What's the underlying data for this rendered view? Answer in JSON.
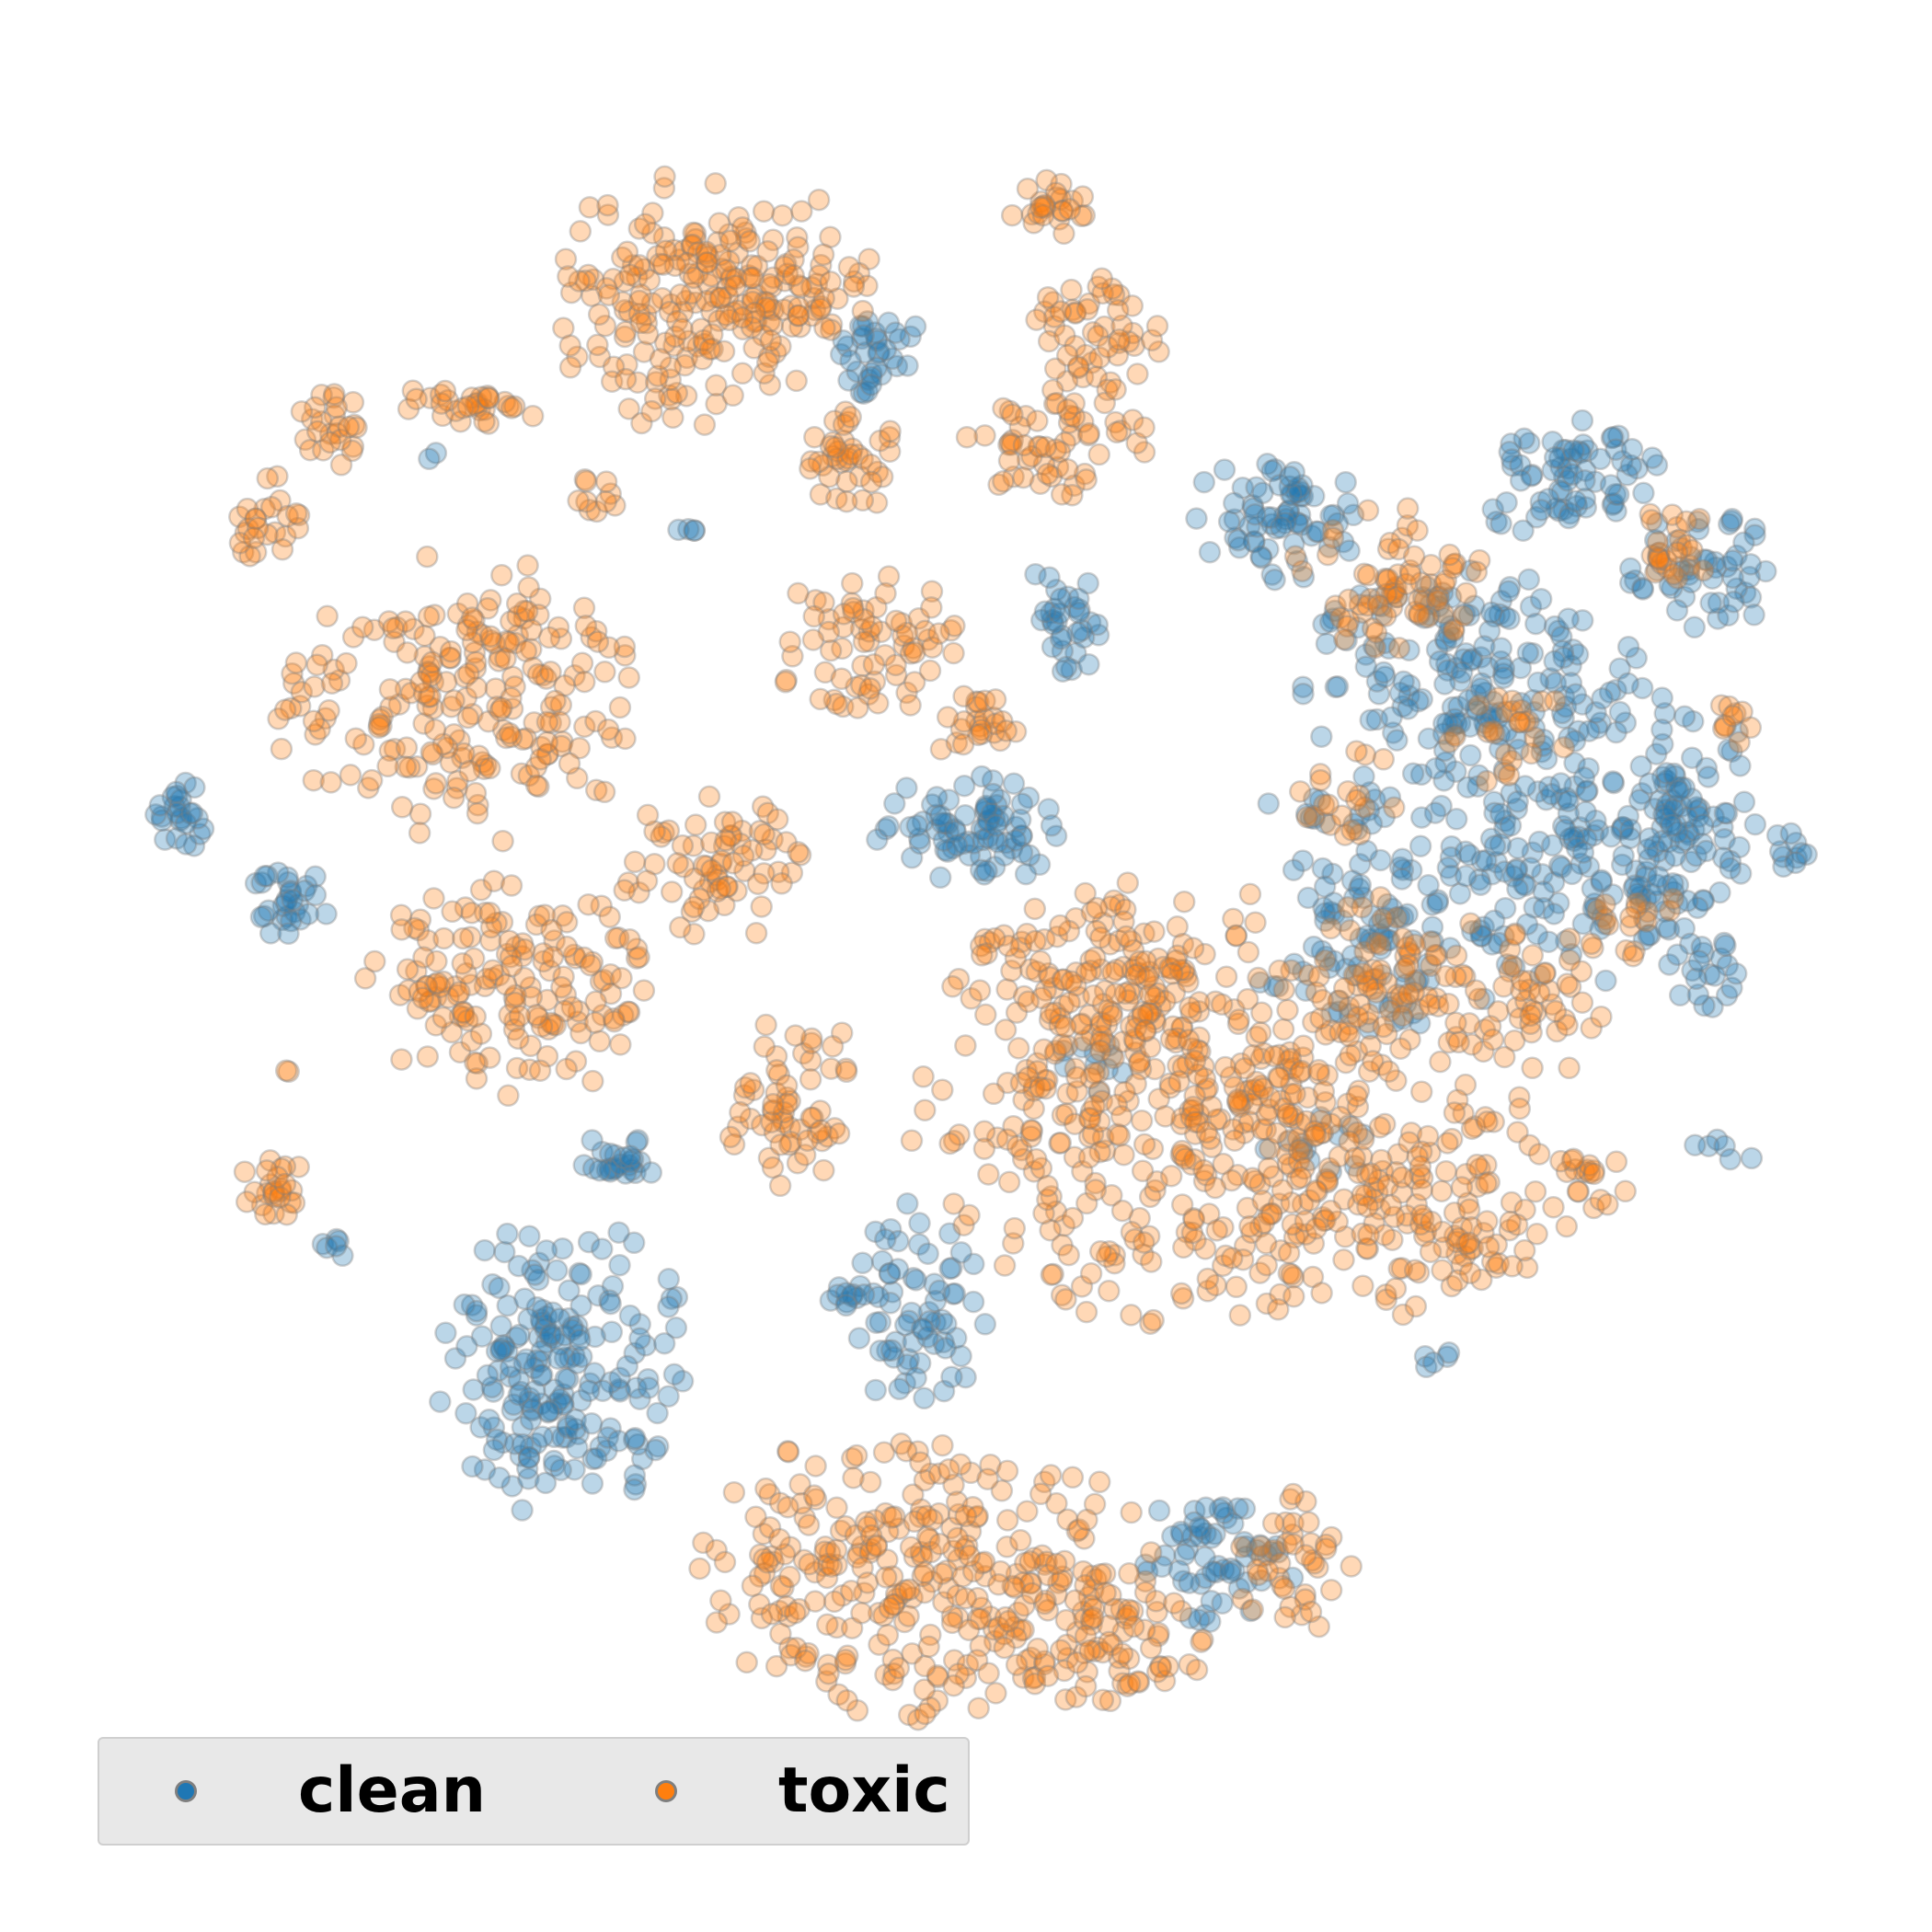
{
  "chart_data": {
    "type": "scatter",
    "title": "",
    "xlabel": "",
    "ylabel": "",
    "axes_visible": false,
    "grid": false,
    "legend_position": "bottom-left",
    "point_alpha": 0.3,
    "edge_color": "#7f7f7f",
    "series": [
      {
        "name": "clean",
        "color": "#1f77b4",
        "clusters": [
          {
            "cx": 1000,
            "cy": 1420,
            "rx": 80,
            "ry": 120,
            "n": 70
          },
          {
            "cx": 1590,
            "cy": 730,
            "rx": 200,
            "ry": 130,
            "n": 160
          },
          {
            "cx": 1720,
            "cy": 900,
            "rx": 190,
            "ry": 170,
            "n": 170
          },
          {
            "cx": 1500,
            "cy": 980,
            "rx": 170,
            "ry": 160,
            "n": 130
          },
          {
            "cx": 1390,
            "cy": 560,
            "rx": 95,
            "ry": 75,
            "n": 70
          },
          {
            "cx": 1700,
            "cy": 520,
            "rx": 110,
            "ry": 65,
            "n": 70
          },
          {
            "cx": 1850,
            "cy": 620,
            "rx": 80,
            "ry": 70,
            "n": 50
          },
          {
            "cx": 1830,
            "cy": 900,
            "rx": 90,
            "ry": 150,
            "n": 70
          },
          {
            "cx": 1060,
            "cy": 900,
            "rx": 110,
            "ry": 60,
            "n": 80
          },
          {
            "cx": 1160,
            "cy": 680,
            "rx": 40,
            "ry": 60,
            "n": 25
          },
          {
            "cx": 610,
            "cy": 1480,
            "rx": 140,
            "ry": 170,
            "n": 200
          },
          {
            "cx": 670,
            "cy": 1260,
            "rx": 45,
            "ry": 30,
            "n": 25
          },
          {
            "cx": 950,
            "cy": 380,
            "rx": 50,
            "ry": 70,
            "n": 35
          },
          {
            "cx": 312,
            "cy": 980,
            "rx": 45,
            "ry": 45,
            "n": 30
          },
          {
            "cx": 195,
            "cy": 890,
            "rx": 38,
            "ry": 40,
            "n": 25
          },
          {
            "cx": 1320,
            "cy": 1700,
            "rx": 90,
            "ry": 80,
            "n": 60
          },
          {
            "cx": 910,
            "cy": 1400,
            "rx": 35,
            "ry": 25,
            "n": 8
          },
          {
            "cx": 1140,
            "cy": 650,
            "rx": 35,
            "ry": 30,
            "n": 8
          },
          {
            "cx": 750,
            "cy": 575,
            "rx": 25,
            "ry": 18,
            "n": 4
          },
          {
            "cx": 360,
            "cy": 1355,
            "rx": 22,
            "ry": 15,
            "n": 6
          },
          {
            "cx": 468,
            "cy": 495,
            "rx": 12,
            "ry": 12,
            "n": 2
          },
          {
            "cx": 1850,
            "cy": 1050,
            "rx": 40,
            "ry": 50,
            "n": 20
          },
          {
            "cx": 1940,
            "cy": 920,
            "rx": 25,
            "ry": 30,
            "n": 10
          },
          {
            "cx": 1880,
            "cy": 1250,
            "rx": 40,
            "ry": 20,
            "n": 6
          },
          {
            "cx": 1430,
            "cy": 1240,
            "rx": 60,
            "ry": 40,
            "n": 12
          },
          {
            "cx": 1190,
            "cy": 1160,
            "rx": 60,
            "ry": 40,
            "n": 10
          },
          {
            "cx": 1560,
            "cy": 1470,
            "rx": 40,
            "ry": 20,
            "n": 5
          }
        ]
      },
      {
        "name": "toxic",
        "color": "#ff7f0e",
        "clusters": [
          {
            "cx": 730,
            "cy": 330,
            "rx": 125,
            "ry": 155,
            "n": 160
          },
          {
            "cx": 860,
            "cy": 320,
            "rx": 95,
            "ry": 110,
            "n": 80
          },
          {
            "cx": 920,
            "cy": 500,
            "rx": 60,
            "ry": 60,
            "n": 40
          },
          {
            "cx": 1140,
            "cy": 225,
            "rx": 55,
            "ry": 38,
            "n": 25
          },
          {
            "cx": 1180,
            "cy": 360,
            "rx": 90,
            "ry": 60,
            "n": 50
          },
          {
            "cx": 1150,
            "cy": 480,
            "rx": 100,
            "ry": 75,
            "n": 60
          },
          {
            "cx": 940,
            "cy": 700,
            "rx": 105,
            "ry": 80,
            "n": 70
          },
          {
            "cx": 1060,
            "cy": 785,
            "rx": 50,
            "ry": 45,
            "n": 25
          },
          {
            "cx": 500,
            "cy": 760,
            "rx": 210,
            "ry": 160,
            "n": 220
          },
          {
            "cx": 555,
            "cy": 1075,
            "rx": 165,
            "ry": 120,
            "n": 160
          },
          {
            "cx": 780,
            "cy": 940,
            "rx": 110,
            "ry": 85,
            "n": 70
          },
          {
            "cx": 290,
            "cy": 560,
            "rx": 40,
            "ry": 60,
            "n": 25
          },
          {
            "cx": 360,
            "cy": 460,
            "rx": 35,
            "ry": 55,
            "n": 25
          },
          {
            "cx": 510,
            "cy": 440,
            "rx": 80,
            "ry": 30,
            "n": 30
          },
          {
            "cx": 655,
            "cy": 540,
            "rx": 30,
            "ry": 25,
            "n": 10
          },
          {
            "cx": 300,
            "cy": 1290,
            "rx": 45,
            "ry": 35,
            "n": 25
          },
          {
            "cx": 860,
            "cy": 1190,
            "rx": 75,
            "ry": 110,
            "n": 60
          },
          {
            "cx": 1250,
            "cy": 1200,
            "rx": 270,
            "ry": 250,
            "n": 360
          },
          {
            "cx": 1200,
            "cy": 1060,
            "rx": 140,
            "ry": 110,
            "n": 90
          },
          {
            "cx": 1480,
            "cy": 1250,
            "rx": 200,
            "ry": 200,
            "n": 200
          },
          {
            "cx": 1000,
            "cy": 1710,
            "rx": 260,
            "ry": 160,
            "n": 280
          },
          {
            "cx": 1180,
            "cy": 1780,
            "rx": 140,
            "ry": 90,
            "n": 90
          },
          {
            "cx": 1510,
            "cy": 630,
            "rx": 110,
            "ry": 80,
            "n": 70
          },
          {
            "cx": 1530,
            "cy": 1060,
            "rx": 140,
            "ry": 90,
            "n": 70
          },
          {
            "cx": 1680,
            "cy": 1090,
            "rx": 90,
            "ry": 80,
            "n": 40
          },
          {
            "cx": 1820,
            "cy": 590,
            "rx": 50,
            "ry": 60,
            "n": 25
          },
          {
            "cx": 1410,
            "cy": 1700,
            "rx": 70,
            "ry": 80,
            "n": 40
          },
          {
            "cx": 1580,
            "cy": 1350,
            "rx": 120,
            "ry": 90,
            "n": 50
          },
          {
            "cx": 1720,
            "cy": 1290,
            "rx": 60,
            "ry": 60,
            "n": 20
          },
          {
            "cx": 1650,
            "cy": 800,
            "rx": 80,
            "ry": 60,
            "n": 25
          },
          {
            "cx": 1780,
            "cy": 1000,
            "rx": 50,
            "ry": 60,
            "n": 15
          },
          {
            "cx": 310,
            "cy": 1170,
            "rx": 12,
            "ry": 12,
            "n": 2
          },
          {
            "cx": 1460,
            "cy": 860,
            "rx": 60,
            "ry": 60,
            "n": 20
          },
          {
            "cx": 1880,
            "cy": 780,
            "rx": 30,
            "ry": 40,
            "n": 10
          }
        ]
      }
    ]
  },
  "legend": {
    "items": [
      {
        "label": "clean",
        "color": "#1f77b4"
      },
      {
        "label": "toxic",
        "color": "#ff7f0e"
      }
    ]
  }
}
